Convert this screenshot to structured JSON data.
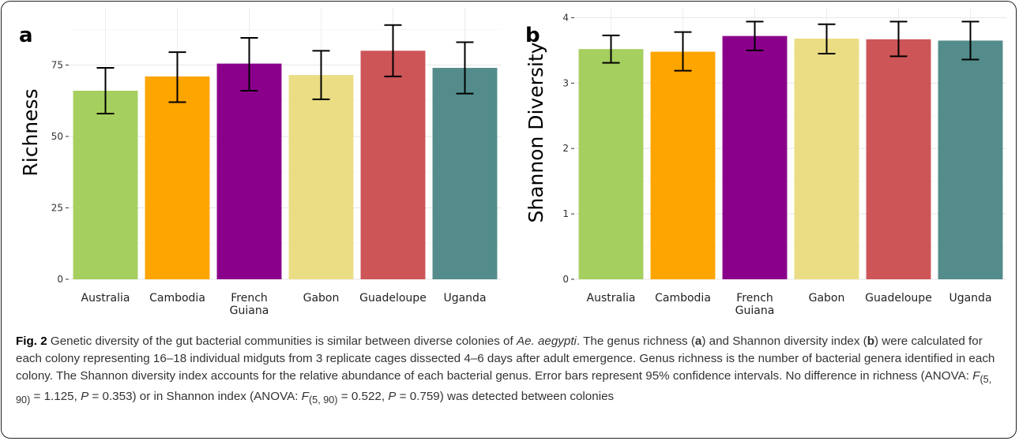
{
  "panels": [
    {
      "letter": "a",
      "chart_data": {
        "type": "bar",
        "categories": [
          "Australia",
          "Cambodia",
          "French\nGuiana",
          "Gabon",
          "Guadeloupe",
          "Uganda"
        ],
        "values": [
          66,
          71,
          75.5,
          71.5,
          80,
          74
        ],
        "error_low": [
          58,
          62,
          66,
          63,
          71,
          65
        ],
        "error_high": [
          74,
          79.5,
          84.5,
          80,
          89,
          83
        ],
        "colors": [
          "#a5cf5e",
          "#ffa500",
          "#8b008b",
          "#eadd84",
          "#cd5557",
          "#538c8b"
        ],
        "ylabel": "Richness",
        "ylim": [
          0,
          95
        ],
        "yticks": [
          0,
          25,
          50,
          75
        ],
        "ytick_labels": [
          "0",
          "25",
          "50",
          "75"
        ],
        "grid": true
      }
    },
    {
      "letter": "b",
      "chart_data": {
        "type": "bar",
        "categories": [
          "Australia",
          "Cambodia",
          "French\nGuiana",
          "Gabon",
          "Guadeloupe",
          "Uganda"
        ],
        "values": [
          3.52,
          3.48,
          3.72,
          3.68,
          3.67,
          3.65
        ],
        "error_low": [
          3.31,
          3.19,
          3.5,
          3.45,
          3.41,
          3.36
        ],
        "error_high": [
          3.73,
          3.78,
          3.94,
          3.9,
          3.94,
          3.94
        ],
        "colors": [
          "#a5cf5e",
          "#ffa500",
          "#8b008b",
          "#eadd84",
          "#cd5557",
          "#538c8b"
        ],
        "ylabel": "Shannon Diversity",
        "ylim": [
          0,
          4.15
        ],
        "yticks": [
          0,
          1,
          2,
          3,
          4
        ],
        "ytick_labels": [
          "0",
          "1",
          "2",
          "3",
          "4"
        ],
        "grid": true
      }
    }
  ],
  "caption": {
    "fig_label": "Fig. 2",
    "t1": " Genetic diversity of the gut bacterial communities is similar between diverse colonies of ",
    "species": "Ae. aegypti",
    "t2": ". The genus richness (",
    "a": "a",
    "t3": ") and Shannon diversity index (",
    "b": "b",
    "t4": ") were calculated for each colony representing 16–18 individual midguts from 3 replicate cages dissected 4–6 days after adult emergence. Genus richness is the number of bacterial genera identified in each colony. The Shannon diversity index accounts for the relative abundance of each bacterial genus. Error bars represent 95% confidence intervals. No difference in richness (ANOVA: ",
    "f1": "F",
    "f1_sub": "(5, 90)",
    "t5": " = 1.125, ",
    "p1": "P",
    "t6": " = 0.353) or in Shannon index (ANOVA: ",
    "f2": "F",
    "f2_sub": "(5, 90)",
    "t7": " = 0.522, ",
    "p2": "P",
    "t8": " = 0.759) was detected between colonies"
  }
}
